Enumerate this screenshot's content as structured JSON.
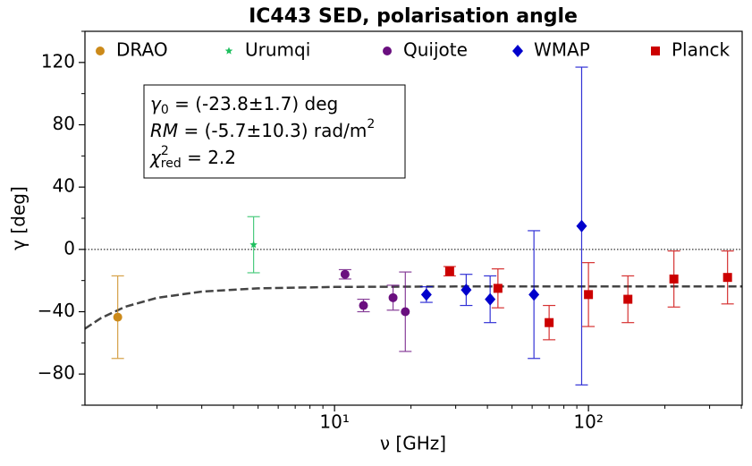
{
  "chart_data": {
    "type": "scatter",
    "title": "IC443 SED, polarisation angle",
    "xlabel": "ν [GHz]",
    "ylabel": "γ [deg]",
    "xscale": "log",
    "xlim": [
      1.04,
      403
    ],
    "ylim": [
      -100,
      140
    ],
    "xticks": [
      {
        "value": 10,
        "label": "10¹"
      },
      {
        "value": 100,
        "label": "10²"
      }
    ],
    "xminorticks": [
      2,
      3,
      4,
      5,
      6,
      7,
      8,
      9,
      20,
      30,
      40,
      50,
      60,
      70,
      80,
      90,
      200,
      300,
      400
    ],
    "yticks": [
      {
        "value": -80,
        "label": "−80"
      },
      {
        "value": -40,
        "label": "−40"
      },
      0,
      40,
      80,
      120
    ],
    "yminorticks": [
      -100,
      -60,
      -20,
      20,
      60,
      100,
      140
    ],
    "hline": 0,
    "legend": "top",
    "series": [
      {
        "name": "DRAO",
        "color": "#cc8a1a",
        "marker": "circle",
        "x": [
          1.4
        ],
        "values": [
          -43.5
        ],
        "errors": [
          26.5
        ]
      },
      {
        "name": "Urumqi",
        "color": "#1fbf5f",
        "marker": "star",
        "x": [
          4.8
        ],
        "values": [
          3
        ],
        "errors": [
          18
        ]
      },
      {
        "name": "Quijote",
        "color": "#6a0f7f",
        "marker": "circle",
        "x": [
          11,
          13,
          17,
          19
        ],
        "values": [
          -16,
          -36,
          -31,
          -40
        ],
        "errors": [
          3,
          4,
          8,
          25.5
        ]
      },
      {
        "name": "WMAP",
        "color": "#0000cc",
        "marker": "diamond",
        "x": [
          23,
          33,
          41,
          61,
          94
        ],
        "values": [
          -29,
          -26,
          -32,
          -29,
          15
        ],
        "errors": [
          5,
          10,
          15,
          41,
          102
        ]
      },
      {
        "name": "Planck",
        "color": "#cc0000",
        "marker": "square",
        "x": [
          28.4,
          44,
          70,
          100,
          143,
          217,
          353
        ],
        "values": [
          -14,
          -25,
          -47,
          -29,
          -32,
          -19,
          -18
        ],
        "errors": [
          3,
          12.5,
          11,
          20.5,
          15,
          18,
          17
        ]
      }
    ],
    "fit": {
      "x": [
        1.04,
        1.2,
        1.5,
        2,
        3,
        5,
        10,
        30,
        100,
        403
      ],
      "values": [
        -50.9,
        -44.2,
        -36.8,
        -31.1,
        -27.1,
        -25.0,
        -24.1,
        -23.8,
        -23.8,
        -23.8
      ]
    },
    "annotation": [
      [
        [
          "γ",
          "i"
        ],
        [
          "0",
          "sub"
        ],
        [
          " = (-23.8±1.7) deg",
          "n"
        ]
      ],
      [
        [
          "RM",
          "i"
        ],
        [
          " = (-5.7±10.3) rad/m",
          "n"
        ],
        [
          "2",
          "sup"
        ]
      ],
      [
        [
          "χ",
          "i"
        ],
        [
          "2",
          "sup"
        ],
        [
          "red",
          "sub"
        ],
        [
          " = 2.2",
          "n"
        ]
      ]
    ]
  }
}
